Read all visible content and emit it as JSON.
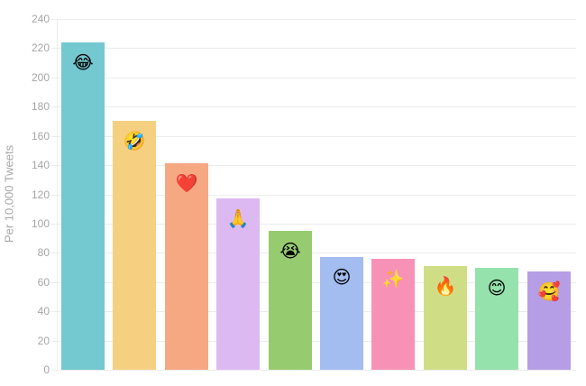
{
  "chart_data": {
    "type": "bar",
    "title": "",
    "xlabel": "",
    "ylabel": "Per 10,000 Tweets",
    "ylim": [
      0,
      240
    ],
    "yticks": [
      0,
      20,
      40,
      60,
      80,
      100,
      120,
      140,
      160,
      180,
      200,
      220,
      240
    ],
    "grid": true,
    "legend": "none",
    "categories": [
      "face-with-tears-of-joy",
      "rolling-on-the-floor-laughing",
      "red-heart",
      "folded-hands",
      "loudly-crying-face",
      "smiling-face-with-heart-eyes",
      "sparkles",
      "fire",
      "smiling-face-with-smiling-eyes",
      "smiling-face-with-hearts"
    ],
    "values": [
      224,
      170,
      141,
      117,
      95,
      77,
      76,
      71,
      70,
      67
    ],
    "colors": [
      "#74C9D1",
      "#F5D080",
      "#F6A883",
      "#DDB9F2",
      "#96CB6F",
      "#A4BDF0",
      "#F792B6",
      "#CFDE85",
      "#95E2AC",
      "#B69EE6"
    ],
    "emoji": [
      "😂",
      "🤣",
      "❤️",
      "🙏",
      "😭",
      "😍",
      "✨",
      "🔥",
      "😊",
      "🥰"
    ]
  }
}
